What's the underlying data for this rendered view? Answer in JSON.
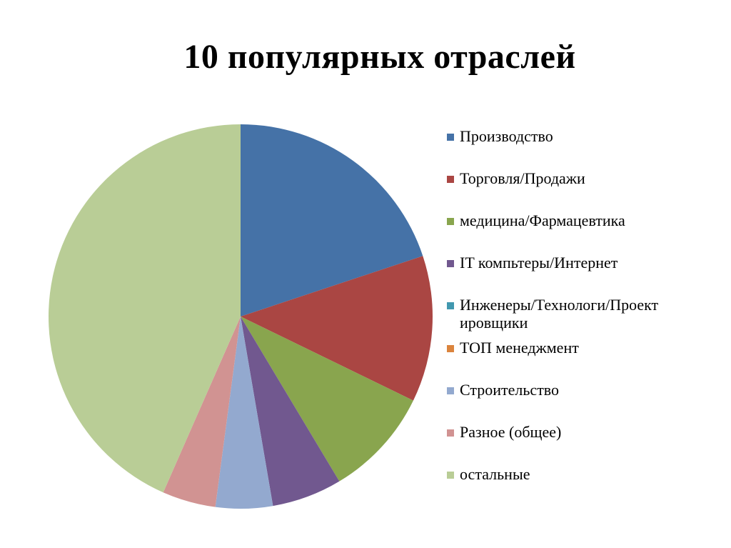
{
  "title": "10 популярных отраслей",
  "chart_data": {
    "type": "pie",
    "title": "10 популярных отраслей",
    "categories": [
      "Производство",
      "Торговля/Продажи",
      "медицина/Фармацевтика",
      "IT компьтеры/Интернет",
      "Инженеры/Технологи/Проектировщики",
      "ТОП менеджмент",
      "Строительство",
      "Разное (общее)",
      "остальные"
    ],
    "values": [
      19.9,
      12.3,
      9.2,
      5.9,
      0,
      0,
      4.8,
      4.5,
      43.4
    ],
    "colors": [
      "#4572a7",
      "#aa4643",
      "#89a54e",
      "#71588f",
      "#4198af",
      "#db843d",
      "#93a9cf",
      "#d19392",
      "#b9cd96"
    ],
    "legend_position": "right",
    "start_angle": 0,
    "direction": "clockwise"
  },
  "legend": [
    {
      "label": "Производство",
      "color": "#4572a7"
    },
    {
      "label": "Торговля/Продажи",
      "color": "#aa4643"
    },
    {
      "label": "медицина/Фармацевтика",
      "color": "#89a54e"
    },
    {
      "label": "IT компьтеры/Интернет",
      "color": "#71588f"
    },
    {
      "label": "Инженеры/Технологи/Проект ировщики",
      "color": "#4198af"
    },
    {
      "label": "ТОП менеджмент",
      "color": "#db843d"
    },
    {
      "label": "Строительство",
      "color": "#93a9cf"
    },
    {
      "label": "Разное (общее)",
      "color": "#d19392"
    },
    {
      "label": "остальные",
      "color": "#b9cd96"
    }
  ]
}
